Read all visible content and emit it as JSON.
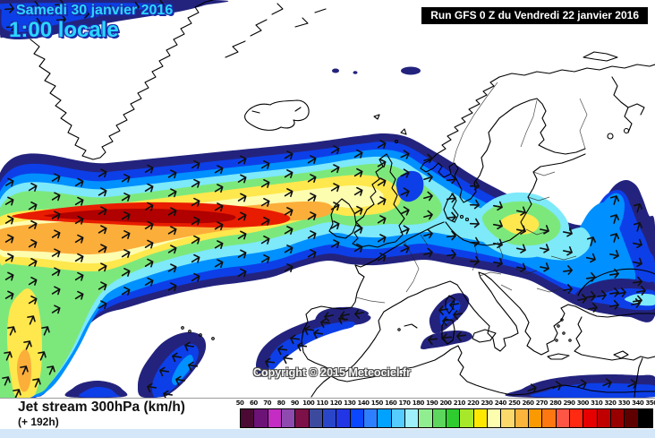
{
  "header": {
    "date_line1": "Samedi 30 janvier 2016",
    "date_line2": "1:00 locale",
    "run_info": "Run GFS 0 Z du Vendredi 22 janvier 2016"
  },
  "map": {
    "copyright": "Copyright © 2015 Meteociel.fr",
    "palette": {
      "navy": "#23237e",
      "blue": "#0d3fe8",
      "azure": "#0090ff",
      "cyan": "#7de9f9",
      "green": "#7ce87c",
      "yellow": "#ffe84d",
      "pale": "#fdfdb0",
      "orange": "#fcae3a",
      "red": "#e81c00",
      "darkred": "#b00000",
      "coast": "#000000",
      "border": "#222222",
      "sea": "#ffffff",
      "arrow": "#101010"
    }
  },
  "footer": {
    "title": "Jet stream 300hPa (km/h)",
    "subtitle": "(+ 192h)"
  },
  "legend": {
    "unit": "km/h",
    "min": 50,
    "max": 350,
    "ticks": [
      50,
      60,
      70,
      80,
      90,
      100,
      110,
      120,
      130,
      140,
      150,
      160,
      170,
      180,
      190,
      200,
      210,
      220,
      230,
      240,
      250,
      260,
      270,
      280,
      290,
      300,
      310,
      320,
      330,
      340,
      350
    ],
    "colors": [
      "#4a0a33",
      "#6d1277",
      "#c42cc4",
      "#8f4ab0",
      "#7c1048",
      "#3c4a9e",
      "#2a46c8",
      "#2336e6",
      "#0a47ff",
      "#2e7fff",
      "#00a2ff",
      "#55ccff",
      "#9ef0fb",
      "#90ee90",
      "#5cd65c",
      "#2ecc2e",
      "#a8e82a",
      "#ffe800",
      "#fdfdb0",
      "#fbd96b",
      "#fbb43c",
      "#fa9a00",
      "#ff7711",
      "#ff5544",
      "#ff2a11",
      "#e60000",
      "#c00000",
      "#980000",
      "#5e0000",
      "#000000"
    ]
  }
}
